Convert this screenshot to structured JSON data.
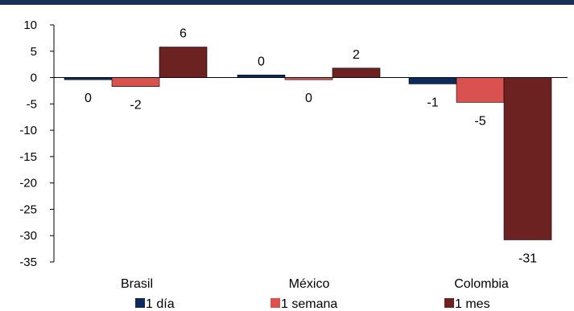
{
  "chart_data": {
    "type": "bar",
    "categories": [
      "Brasil",
      "México",
      "Colombia"
    ],
    "series": [
      {
        "name": "1 día",
        "values": [
          -0.4,
          0.5,
          -1.2
        ],
        "labels": [
          "0",
          "0",
          "-1"
        ]
      },
      {
        "name": "1 semana",
        "values": [
          -1.7,
          -0.4,
          -4.7
        ],
        "labels": [
          "-2",
          "0",
          "-5"
        ]
      },
      {
        "name": "1 mes",
        "values": [
          5.8,
          1.8,
          -30.8
        ],
        "labels": [
          "6",
          "2",
          "-31"
        ]
      }
    ],
    "ylim": [
      -35,
      10
    ],
    "yticks": [
      "10",
      "5",
      "0",
      "-5",
      "-10",
      "-15",
      "-20",
      "-25",
      "-30",
      "-35"
    ],
    "title": "",
    "xlabel": "",
    "ylabel": "",
    "grid": false,
    "legend_position": "bottom",
    "colors": {
      "top_bar": "#1a2f55",
      "1 día": "#0d2b5a",
      "1 semana": "#d9524f",
      "1 mes": "#6b2220"
    }
  }
}
